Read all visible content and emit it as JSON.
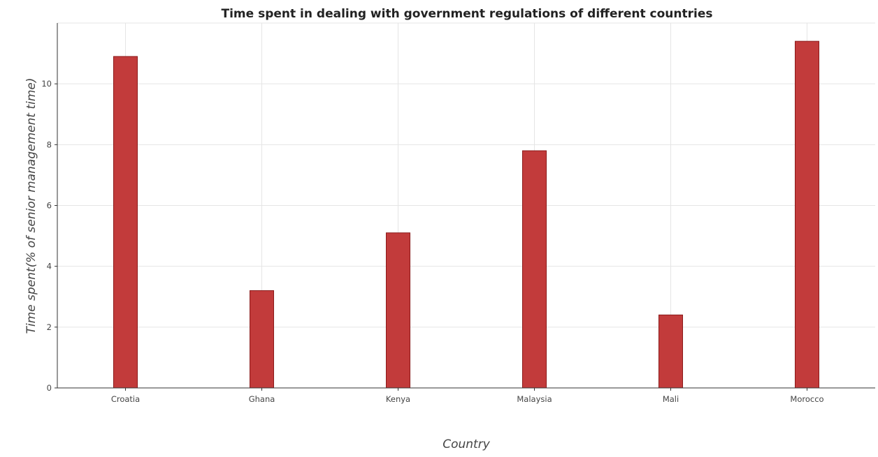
{
  "chart_data": {
    "type": "bar",
    "title": "Time spent in dealing with government regulations of different countries",
    "xlabel": "Country",
    "ylabel": "Time spent(% of senior management time)",
    "categories": [
      "Croatia",
      "Ghana",
      "Kenya",
      "Malaysia",
      "Mali",
      "Morocco"
    ],
    "values": [
      10.9,
      3.2,
      5.1,
      7.8,
      2.4,
      11.4
    ],
    "ylim": [
      0,
      12
    ],
    "yticks": [
      "0",
      "2",
      "4",
      "6",
      "8",
      "10"
    ],
    "grid": true,
    "legend": "none",
    "colors": {
      "bar_fill": "#c23b3b",
      "bar_stroke": "#8b1a1a",
      "grid": "#e5e5e5",
      "axis": "#333333"
    }
  }
}
